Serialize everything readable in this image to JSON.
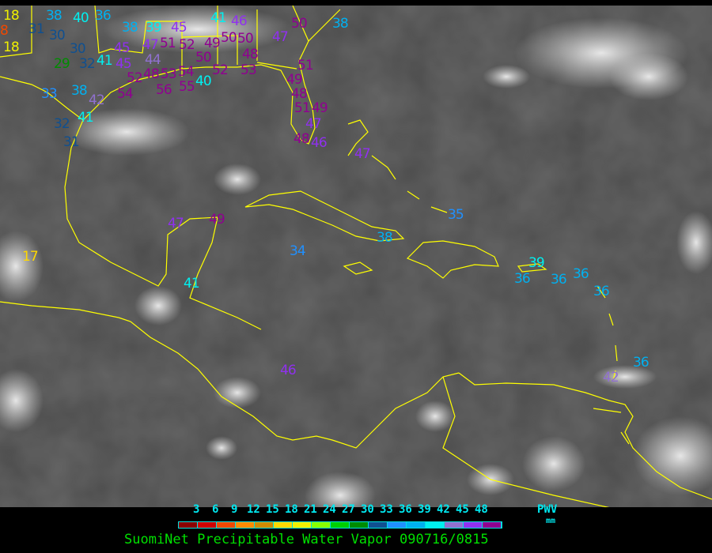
{
  "title": "SuomiNet Precipitable Water Vapor 090716/0815",
  "legend": {
    "variable": "PWV",
    "unit": "mm",
    "ticks": [
      "3",
      "6",
      "9",
      "12",
      "15",
      "18",
      "21",
      "24",
      "27",
      "30",
      "33",
      "36",
      "39",
      "42",
      "45",
      "48"
    ],
    "colors": [
      "#8b0000",
      "#d00000",
      "#f04800",
      "#ff8a00",
      "#d08a00",
      "#ffd800",
      "#f0f000",
      "#88ff00",
      "#00d000",
      "#008c00",
      "#105090",
      "#2090ff",
      "#00b0f0",
      "#00f0f0",
      "#9070d0",
      "#9030f0",
      "#900090"
    ]
  },
  "colors": {
    "background": "#505050",
    "boundaries": "#ffff00",
    "title": "#00e000",
    "legend_text": "#00e8f0"
  },
  "stations": [
    "18",
    "8",
    "18",
    "36",
    "38",
    "40",
    "31",
    "30",
    "30",
    "32",
    "29",
    "41",
    "45",
    "38",
    "33",
    "42",
    "41",
    "32",
    "31",
    "38",
    "39",
    "45",
    "47",
    "51",
    "52",
    "49",
    "46",
    "50",
    "50",
    "48",
    "44",
    "45",
    "48",
    "53",
    "54",
    "55",
    "40",
    "50",
    "52",
    "53",
    "54",
    "52",
    "56",
    "41",
    "50",
    "47",
    "38",
    "51",
    "49",
    "48",
    "51",
    "49",
    "47",
    "48",
    "46",
    "47",
    "17",
    "47",
    "49",
    "34",
    "38",
    "35",
    "36",
    "39",
    "36",
    "36",
    "36",
    "36",
    "42",
    "41",
    "46"
  ]
}
